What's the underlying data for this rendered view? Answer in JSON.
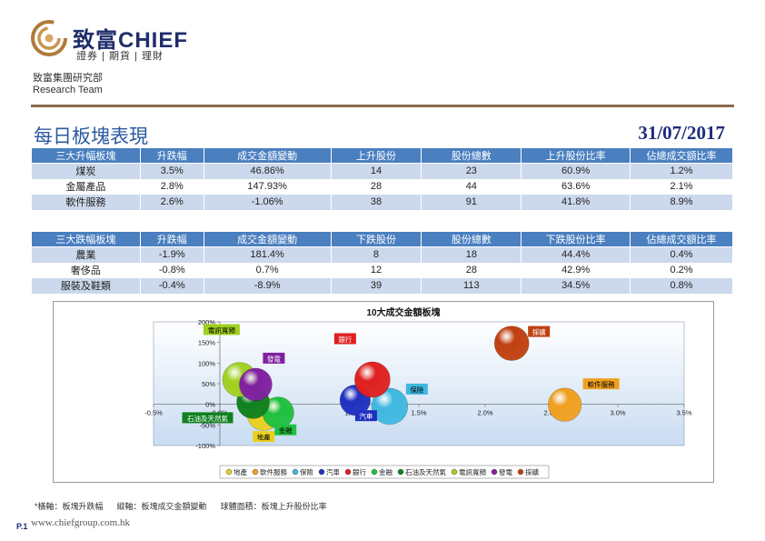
{
  "header": {
    "brand": "致富CHIEF",
    "brand_sub": "證券 | 期貨 | 理財",
    "department": "致富集團研究部",
    "department_en": "Research Team"
  },
  "report": {
    "title": "每日板塊表現",
    "date": "31/07/2017"
  },
  "gainers": {
    "headers": [
      "三大升幅板塊",
      "升跌幅",
      "成交金額變動",
      "上升股份",
      "股份總數",
      "上升股份比率",
      "佔總成交額比率"
    ],
    "rows": [
      [
        "煤炭",
        "3.5%",
        "46.86%",
        "14",
        "23",
        "60.9%",
        "1.2%"
      ],
      [
        "金屬產品",
        "2.8%",
        "147.93%",
        "28",
        "44",
        "63.6%",
        "2.1%"
      ],
      [
        "軟件服務",
        "2.6%",
        "-1.06%",
        "38",
        "91",
        "41.8%",
        "8.9%"
      ]
    ]
  },
  "losers": {
    "headers": [
      "三大跌幅板塊",
      "升跌幅",
      "成交金額變動",
      "下跌股份",
      "股份總數",
      "下跌股份比率",
      "佔總成交額比率"
    ],
    "rows": [
      [
        "農業",
        "-1.9%",
        "181.4%",
        "8",
        "18",
        "44.4%",
        "0.4%"
      ],
      [
        "奢侈品",
        "-0.8%",
        "0.7%",
        "12",
        "28",
        "42.9%",
        "0.2%"
      ],
      [
        "服裝及鞋類",
        "-0.4%",
        "-8.9%",
        "39",
        "113",
        "34.5%",
        "0.8%"
      ]
    ]
  },
  "chart_data": {
    "type": "scatter",
    "title": "10大成交金額板塊",
    "xlim": [
      -0.5,
      3.5
    ],
    "ylim": [
      -100,
      200
    ],
    "x_ticks": [
      "-0.5%",
      "0.0%",
      "0.5%",
      "1.0%",
      "1.5%",
      "2.0%",
      "2.5%",
      "3.0%",
      "3.5%"
    ],
    "y_ticks": [
      "-100%",
      "-50%",
      "0%",
      "50%",
      "100%",
      "150%",
      "200%"
    ],
    "grid": false,
    "legend_position": "bottom",
    "series": [
      {
        "name": "地產",
        "x": 0.33,
        "y": -23,
        "size": 0.42,
        "color": "#e8d020"
      },
      {
        "name": "軟件服務",
        "x": 2.6,
        "y": -1.06,
        "size": 0.418,
        "color": "#f0a020"
      },
      {
        "name": "保險",
        "x": 1.28,
        "y": -5,
        "size": 0.5,
        "color": "#40b8e0"
      },
      {
        "name": "汽車",
        "x": 1.02,
        "y": 10,
        "size": 0.34,
        "color": "#2030c0"
      },
      {
        "name": "銀行",
        "x": 1.15,
        "y": 60,
        "size": 0.48,
        "color": "#e02020"
      },
      {
        "name": "金融",
        "x": 0.44,
        "y": -20,
        "size": 0.36,
        "color": "#20c040"
      },
      {
        "name": "石油及天然氣",
        "x": 0.25,
        "y": 5,
        "size": 0.4,
        "color": "#108020"
      },
      {
        "name": "電訊寬頻",
        "x": 0.15,
        "y": 60,
        "size": 0.45,
        "color": "#a0d020"
      },
      {
        "name": "發電",
        "x": 0.27,
        "y": 48,
        "size": 0.4,
        "color": "#8020a0"
      },
      {
        "name": "採礦",
        "x": 2.2,
        "y": 148,
        "size": 0.45,
        "color": "#c04010"
      }
    ]
  },
  "footer": {
    "note_marker": "*",
    "note_x": "橫軸：板塊升跌幅",
    "note_y": "縱軸：板塊成交金額變動",
    "note_size": "球體面積：板塊上升股份比率",
    "page": "P.1",
    "website": "www.chiefgroup.com.hk"
  }
}
